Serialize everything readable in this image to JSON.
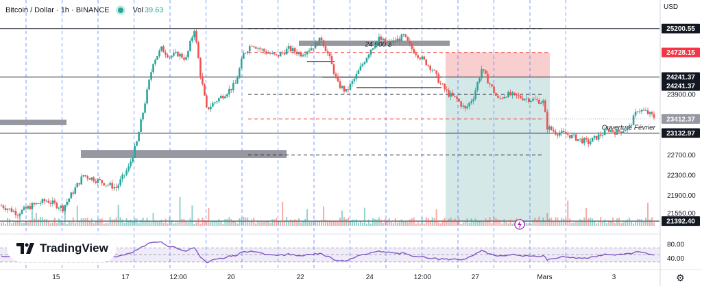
{
  "header": {
    "symbol": "Bitcoin / Dollar · 1h · BINANCE",
    "vol_label": "Vol",
    "vol_value": "39.63",
    "currency": "USD"
  },
  "logo_text": "TradingView",
  "settings_icon": "gear-icon",
  "colors": {
    "up": "#26a69a",
    "down": "#ef5350",
    "rsi": "#7e57c2",
    "guide_blue": "#2962ff",
    "zone_gray": "#9598a1",
    "stop_zone": "#f8c9c9",
    "target_zone": "#cfe6e6"
  },
  "chart_data": {
    "type": "candlestick",
    "symbol": "BTCUSD",
    "interval": "1h",
    "exchange": "BINANCE",
    "x_tick_labels": [
      {
        "label": "15",
        "pos": 0.085
      },
      {
        "label": "17",
        "pos": 0.19
      },
      {
        "label": "12:00",
        "pos": 0.27
      },
      {
        "label": "20",
        "pos": 0.35
      },
      {
        "label": "22",
        "pos": 0.455
      },
      {
        "label": "24",
        "pos": 0.56
      },
      {
        "label": "12:00",
        "pos": 0.64
      },
      {
        "label": "27",
        "pos": 0.72
      },
      {
        "label": "Mars",
        "pos": 0.825
      },
      {
        "label": "3",
        "pos": 0.93
      }
    ],
    "y_ticks": [
      25200.55,
      24728.15,
      24241.37,
      23900,
      23412.37,
      23132.97,
      22700,
      22300,
      21900,
      21550,
      21392.4
    ],
    "y_range": [
      21300,
      25400
    ],
    "price_labels": [
      {
        "value": 25200.55,
        "text": "25200.55",
        "style": "line"
      },
      {
        "value": 24728.15,
        "text": "24728.15",
        "style": "stop"
      },
      {
        "value": 24241.37,
        "text": "24241.37",
        "style": "dark"
      },
      {
        "value": 24241.37,
        "text": "24241.37",
        "style": "line"
      },
      {
        "value": 23412.37,
        "text": "23412.37",
        "style": "current"
      },
      {
        "value": 23132.97,
        "text": "23132.97",
        "style": "line"
      },
      {
        "value": 21392.4,
        "text": "21392.40",
        "style": "line"
      }
    ],
    "annotations": [
      {
        "text": "24 900 $",
        "price": 24900
      },
      {
        "text": "Ouverture Février",
        "price": 23132.97
      }
    ],
    "horizontal_levels": [
      25200.55,
      24241.37,
      23132.97,
      21392.4
    ],
    "resistance_zones": [
      [
        24860,
        24960
      ],
      [
        22640,
        22800
      ],
      [
        23290,
        23400
      ]
    ],
    "position": {
      "entry": 24241.37,
      "stop": 24728.15,
      "target": 21392.4
    },
    "rsi": {
      "levels": [
        70,
        50,
        30
      ],
      "tick_labels": [
        "80.00",
        "40.00"
      ],
      "range": [
        20,
        90
      ]
    },
    "path": [
      [
        0,
        21700
      ],
      [
        8,
        21550
      ],
      [
        15,
        21700
      ],
      [
        22,
        21800
      ],
      [
        30,
        21650
      ],
      [
        40,
        22300
      ],
      [
        50,
        22150
      ],
      [
        56,
        22050
      ],
      [
        62,
        22450
      ],
      [
        66,
        22950
      ],
      [
        70,
        23750
      ],
      [
        74,
        24550
      ],
      [
        78,
        24800
      ],
      [
        82,
        24650
      ],
      [
        86,
        24700
      ],
      [
        90,
        24600
      ],
      [
        94,
        25200
      ],
      [
        97,
        24300
      ],
      [
        100,
        23600
      ],
      [
        104,
        23750
      ],
      [
        110,
        23950
      ],
      [
        114,
        24100
      ],
      [
        118,
        24700
      ],
      [
        122,
        24900
      ],
      [
        128,
        24750
      ],
      [
        134,
        24650
      ],
      [
        140,
        24800
      ],
      [
        146,
        24700
      ],
      [
        152,
        24850
      ],
      [
        156,
        25000
      ],
      [
        160,
        24600
      ],
      [
        164,
        24100
      ],
      [
        168,
        23950
      ],
      [
        172,
        24200
      ],
      [
        176,
        24500
      ],
      [
        180,
        24800
      ],
      [
        184,
        25000
      ],
      [
        188,
        24900
      ],
      [
        192,
        24950
      ],
      [
        196,
        25050
      ],
      [
        200,
        24800
      ],
      [
        205,
        24600
      ],
      [
        210,
        24400
      ],
      [
        214,
        24100
      ],
      [
        218,
        23900
      ],
      [
        222,
        23800
      ],
      [
        226,
        23600
      ],
      [
        230,
        23850
      ],
      [
        234,
        24400
      ],
      [
        238,
        24100
      ],
      [
        242,
        23800
      ],
      [
        246,
        23900
      ],
      [
        252,
        23850
      ],
      [
        258,
        23800
      ],
      [
        264,
        23750
      ],
      [
        266,
        23250
      ],
      [
        270,
        23150
      ],
      [
        276,
        23100
      ],
      [
        282,
        23000
      ],
      [
        286,
        22950
      ],
      [
        292,
        23100
      ],
      [
        296,
        23200
      ],
      [
        300,
        23150
      ],
      [
        306,
        23250
      ],
      [
        310,
        23600
      ],
      [
        314,
        23550
      ],
      [
        318,
        23450
      ]
    ]
  }
}
